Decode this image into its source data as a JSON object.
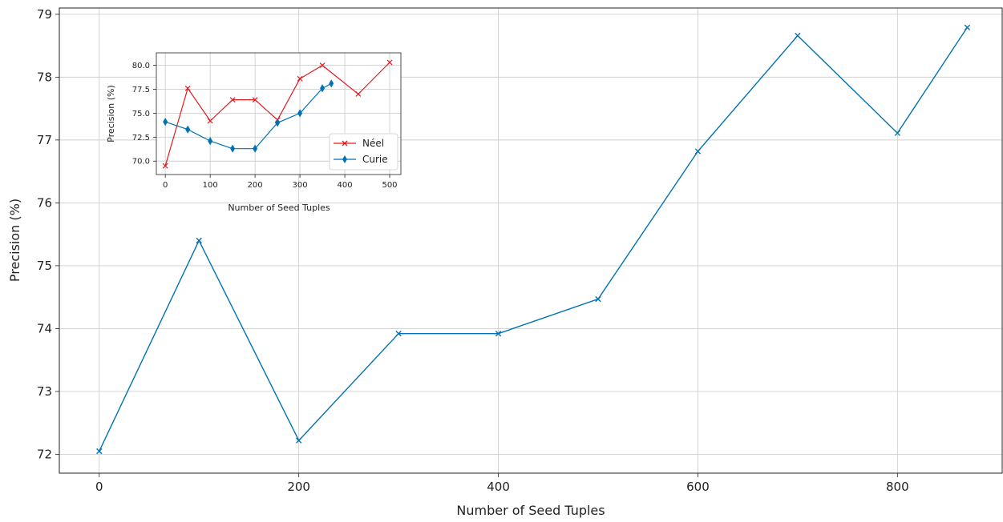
{
  "chart_data": [
    {
      "type": "line",
      "xlabel": "Number of Seed Tuples",
      "ylabel": "Precision (%)",
      "xlim": [
        -40,
        905
      ],
      "ylim": [
        71.7,
        79.1
      ],
      "xticks": [
        0,
        200,
        400,
        600,
        800
      ],
      "xtick_labels": [
        "0",
        "200",
        "400",
        "600",
        "800"
      ],
      "yticks": [
        72,
        73,
        74,
        75,
        76,
        77,
        78,
        79
      ],
      "ytick_labels": [
        "72",
        "73",
        "74",
        "75",
        "76",
        "77",
        "78",
        "79"
      ],
      "grid": true,
      "series": [
        {
          "color": "#0072B2",
          "marker": "x",
          "x": [
            0,
            100,
            200,
            300,
            400,
            500,
            600,
            700,
            800,
            870
          ],
          "y": [
            72.05,
            75.4,
            72.22,
            73.92,
            73.92,
            74.47,
            76.82,
            78.66,
            77.11,
            78.79
          ]
        }
      ]
    },
    {
      "type": "line",
      "inset": true,
      "xlabel": "Number of Seed Tuples",
      "ylabel": "Precision (%)",
      "xlim": [
        -20,
        525
      ],
      "ylim": [
        68.6,
        81.3
      ],
      "xticks": [
        0,
        100,
        200,
        300,
        400,
        500
      ],
      "xtick_labels": [
        "0",
        "100",
        "200",
        "300",
        "400",
        "500"
      ],
      "yticks": [
        70.0,
        72.5,
        75.0,
        77.5,
        80.0
      ],
      "ytick_labels": [
        "70.0",
        "72.5",
        "75.0",
        "77.5",
        "80.0"
      ],
      "grid": true,
      "legend": "lower-right",
      "series": [
        {
          "name": "Néel",
          "color": "#E41A1C",
          "marker": "x",
          "x": [
            0,
            50,
            100,
            150,
            200,
            250,
            300,
            350,
            430,
            500
          ],
          "y": [
            69.5,
            77.6,
            74.2,
            76.4,
            76.4,
            74.3,
            78.6,
            80.0,
            77.0,
            80.3
          ]
        },
        {
          "name": "Curie",
          "color": "#0072B2",
          "marker": "d",
          "x": [
            0,
            50,
            100,
            150,
            200,
            250,
            300,
            350,
            370
          ],
          "y": [
            74.1,
            73.3,
            72.1,
            71.3,
            71.3,
            74.0,
            75.0,
            77.6,
            78.1
          ]
        }
      ]
    }
  ]
}
